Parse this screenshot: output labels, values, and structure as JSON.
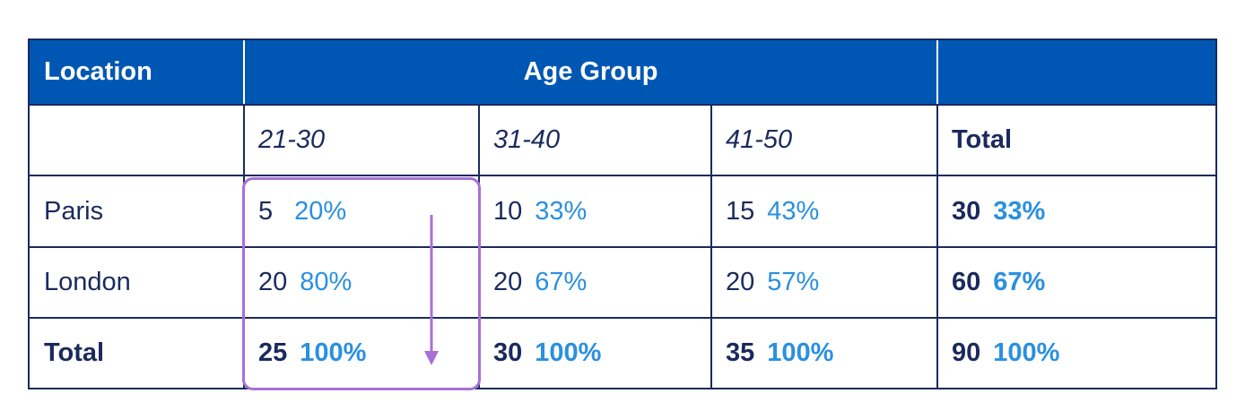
{
  "header": {
    "location": "Location",
    "age_group": "Age Group",
    "blank": ""
  },
  "subheader": {
    "col1": "21-30",
    "col2": "31-40",
    "col3": "41-50",
    "total": "Total"
  },
  "rows": [
    {
      "label": "Paris",
      "cells": [
        {
          "count": "5",
          "pct": "20%"
        },
        {
          "count": "10",
          "pct": "33%"
        },
        {
          "count": "15",
          "pct": "43%"
        }
      ],
      "total": {
        "count": "30",
        "pct": "33%"
      }
    },
    {
      "label": "London",
      "cells": [
        {
          "count": "20",
          "pct": "80%"
        },
        {
          "count": "20",
          "pct": "67%"
        },
        {
          "count": "20",
          "pct": "57%"
        }
      ],
      "total": {
        "count": "60",
        "pct": "67%"
      }
    },
    {
      "label": "Total",
      "cells": [
        {
          "count": "25",
          "pct": "100%"
        },
        {
          "count": "30",
          "pct": "100%"
        },
        {
          "count": "35",
          "pct": "100%"
        }
      ],
      "total": {
        "count": "90",
        "pct": "100%"
      }
    }
  ],
  "colors": {
    "header_bg": "#0057b3",
    "border": "#1b2a5c",
    "percent": "#2a90e0",
    "highlight": "#a770d6"
  }
}
